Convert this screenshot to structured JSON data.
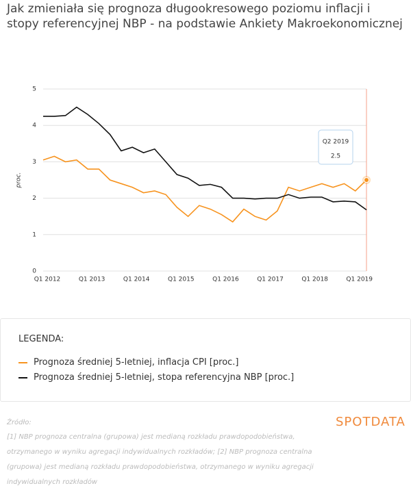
{
  "chart_data": {
    "type": "line",
    "title": "Jak zmieniała się prognoza długookresowego poziomu inflacji i stopy referencyjnej NBP - na podstawie Ankiety Makroekonomicznej",
    "ylabel": "proc.",
    "categories": [
      "Q1 2012",
      null,
      null,
      null,
      "Q1 2013",
      null,
      null,
      null,
      "Q1 2014",
      null,
      null,
      null,
      "Q1 2015",
      null,
      null,
      null,
      "Q1 2016",
      null,
      null,
      null,
      "Q1 2017",
      null,
      null,
      null,
      "Q1 2018",
      null,
      null,
      null,
      "Q1 2019",
      null
    ],
    "series": [
      {
        "name": "Prognoza średniej 5-letniej, inflacja CPI [proc.]",
        "color": "#f7931e",
        "values": [
          3.05,
          3.15,
          3.0,
          3.05,
          2.8,
          2.8,
          2.5,
          2.4,
          2.3,
          2.15,
          2.2,
          2.1,
          1.75,
          1.5,
          1.8,
          1.7,
          1.55,
          1.35,
          1.7,
          1.5,
          1.4,
          1.65,
          2.3,
          2.2,
          2.3,
          2.4,
          2.3,
          2.4,
          2.2,
          2.5
        ]
      },
      {
        "name": "Prognoza średniej 5-letniej, stopa referencyjna NBP [proc.]",
        "color": "#111111",
        "values": [
          4.25,
          4.25,
          4.27,
          4.5,
          4.3,
          4.05,
          3.75,
          3.3,
          3.4,
          3.25,
          3.35,
          3.0,
          2.65,
          2.55,
          2.35,
          2.38,
          2.3,
          2.0,
          2.0,
          1.98,
          2.0,
          2.0,
          2.1,
          2.0,
          2.03,
          2.03,
          1.9,
          1.92,
          1.9,
          1.68
        ]
      }
    ],
    "ylim": [
      0,
      5
    ],
    "yticks": [
      0,
      1,
      2,
      3,
      4,
      5
    ],
    "grid": true,
    "tooltip": {
      "category": "Q2 2019",
      "value": 2.5
    },
    "legend_title": "LEGENDA:"
  },
  "source": {
    "label": "Źródło:",
    "text": "[1] NBP prognoza centralna (grupowa) jest medianą rozkładu prawdopodobieństwa, otrzymanego w wyniku agregacji indywidualnych rozkładów; [2] NBP prognoza centralna (grupowa) jest medianą rozkładu prawdopodobieństwa, otrzymanego w wyniku agregacji indywidualnych rozkładów"
  },
  "logo": "SPOTDATA"
}
